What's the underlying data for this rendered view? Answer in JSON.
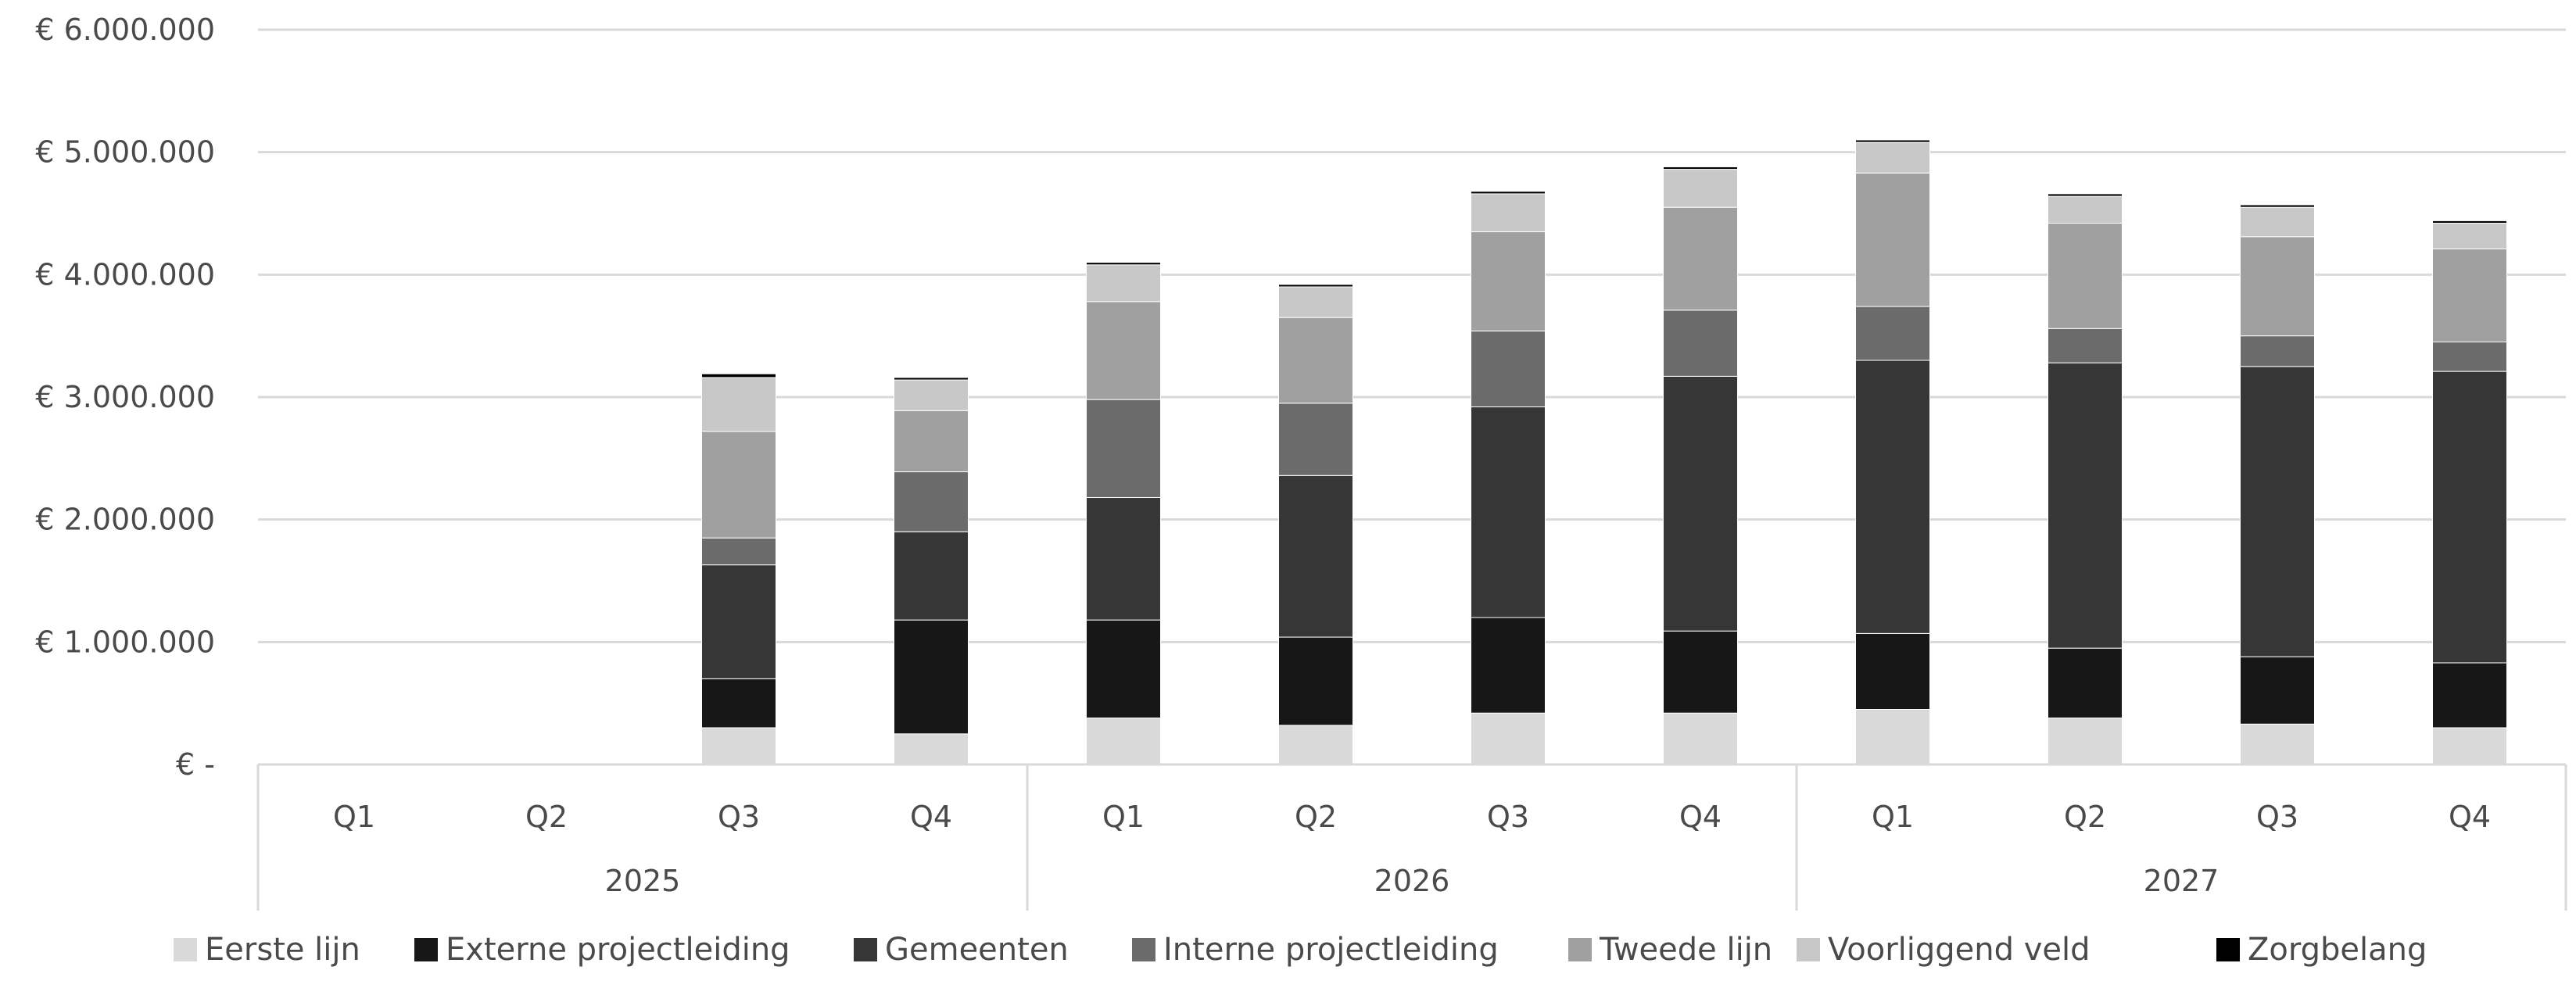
{
  "chart_data": {
    "type": "bar",
    "stacked": true,
    "title": "",
    "xlabel": "",
    "ylabel": "",
    "ylim": [
      0,
      6000000
    ],
    "y_ticks": [
      {
        "value": 0,
        "label": "€ -"
      },
      {
        "value": 1000000,
        "label": "€ 1.000.000"
      },
      {
        "value": 2000000,
        "label": "€ 2.000.000"
      },
      {
        "value": 3000000,
        "label": "€ 3.000.000"
      },
      {
        "value": 4000000,
        "label": "€ 4.000.000"
      },
      {
        "value": 5000000,
        "label": "€ 5.000.000"
      },
      {
        "value": 6000000,
        "label": "€ 6.000.000"
      }
    ],
    "grid": true,
    "legend_position": "bottom",
    "groups": [
      {
        "label": "2025",
        "categories": [
          "Q1",
          "Q2",
          "Q3",
          "Q4"
        ]
      },
      {
        "label": "2026",
        "categories": [
          "Q1",
          "Q2",
          "Q3",
          "Q4"
        ]
      },
      {
        "label": "2027",
        "categories": [
          "Q1",
          "Q2",
          "Q3",
          "Q4"
        ]
      }
    ],
    "categories": [
      "Q1",
      "Q2",
      "Q3",
      "Q4",
      "Q1",
      "Q2",
      "Q3",
      "Q4",
      "Q1",
      "Q2",
      "Q3",
      "Q4"
    ],
    "series": [
      {
        "name": "Eerste lijn",
        "color": "#d9d9d9",
        "values": [
          0,
          0,
          300000,
          250000,
          380000,
          320000,
          420000,
          420000,
          450000,
          380000,
          330000,
          300000
        ]
      },
      {
        "name": "Externe projectleiding",
        "color": "#171717",
        "values": [
          0,
          0,
          400000,
          930000,
          800000,
          720000,
          780000,
          670000,
          620000,
          570000,
          550000,
          530000
        ]
      },
      {
        "name": "Gemeenten",
        "color": "#363636",
        "values": [
          0,
          0,
          930000,
          720000,
          1000000,
          1320000,
          1720000,
          2080000,
          2230000,
          2330000,
          2370000,
          2380000
        ]
      },
      {
        "name": "Interne projectleiding",
        "color": "#6b6b6b",
        "values": [
          0,
          0,
          220000,
          490000,
          800000,
          590000,
          620000,
          540000,
          440000,
          280000,
          250000,
          240000
        ]
      },
      {
        "name": "Tweede lijn",
        "color": "#a0a0a0",
        "values": [
          0,
          0,
          870000,
          500000,
          800000,
          700000,
          810000,
          840000,
          1090000,
          860000,
          810000,
          760000
        ]
      },
      {
        "name": "Voorliggend veld",
        "color": "#c8c8c8",
        "values": [
          0,
          0,
          440000,
          250000,
          300000,
          250000,
          310000,
          310000,
          250000,
          220000,
          240000,
          210000
        ]
      },
      {
        "name": "Zorgbelang",
        "color": "#000000",
        "values": [
          0,
          0,
          30000,
          20000,
          20000,
          20000,
          20000,
          20000,
          20000,
          20000,
          20000,
          20000
        ]
      }
    ]
  }
}
